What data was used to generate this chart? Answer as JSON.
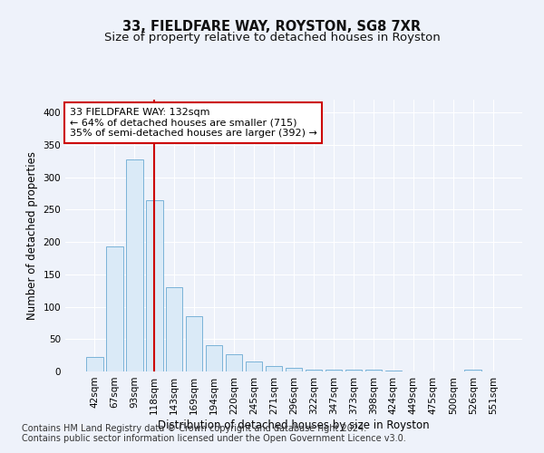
{
  "title_line1": "33, FIELDFARE WAY, ROYSTON, SG8 7XR",
  "title_line2": "Size of property relative to detached houses in Royston",
  "xlabel": "Distribution of detached houses by size in Royston",
  "ylabel": "Number of detached properties",
  "categories": [
    "42sqm",
    "67sqm",
    "93sqm",
    "118sqm",
    "143sqm",
    "169sqm",
    "194sqm",
    "220sqm",
    "245sqm",
    "271sqm",
    "296sqm",
    "322sqm",
    "347sqm",
    "373sqm",
    "398sqm",
    "424sqm",
    "449sqm",
    "475sqm",
    "500sqm",
    "526sqm",
    "551sqm"
  ],
  "values": [
    23,
    193,
    328,
    265,
    130,
    85,
    40,
    27,
    15,
    8,
    5,
    3,
    3,
    3,
    3,
    2,
    0,
    0,
    0,
    3,
    0
  ],
  "bar_color": "#daeaf7",
  "bar_edge_color": "#7ab3d8",
  "vline_x_index": 3,
  "vline_color": "#cc0000",
  "annotation_text": "33 FIELDFARE WAY: 132sqm\n← 64% of detached houses are smaller (715)\n35% of semi-detached houses are larger (392) →",
  "annotation_box_color": "white",
  "annotation_box_edge": "#cc0000",
  "ylim": [
    0,
    420
  ],
  "yticks": [
    0,
    50,
    100,
    150,
    200,
    250,
    300,
    350,
    400
  ],
  "footer_line1": "Contains HM Land Registry data © Crown copyright and database right 2024.",
  "footer_line2": "Contains public sector information licensed under the Open Government Licence v3.0.",
  "background_color": "#eef2fa",
  "plot_bg_color": "#eef2fa",
  "grid_color": "#ffffff",
  "title_fontsize": 10.5,
  "subtitle_fontsize": 9.5,
  "label_fontsize": 8.5,
  "tick_fontsize": 7.5,
  "footer_fontsize": 7,
  "annot_fontsize": 8
}
